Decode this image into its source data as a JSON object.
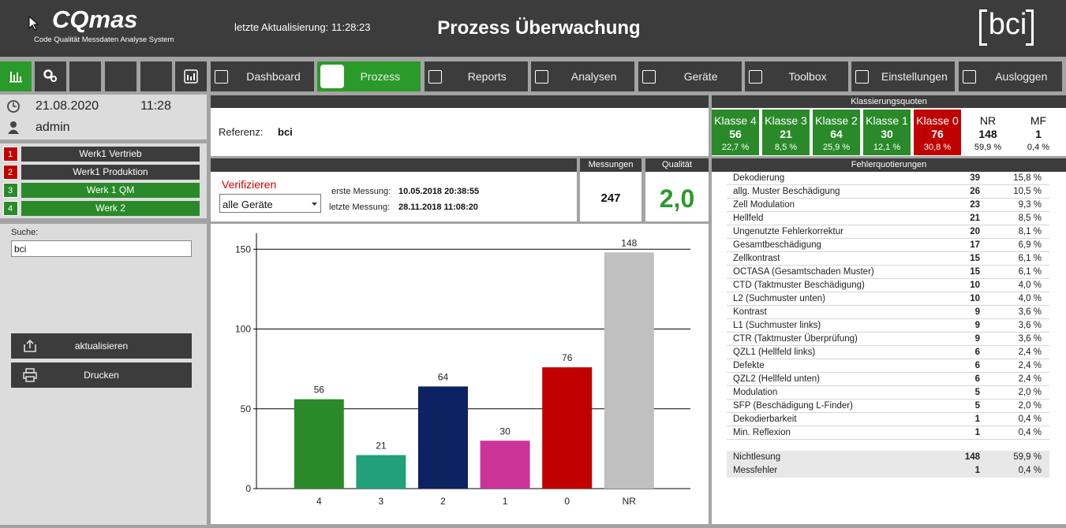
{
  "header": {
    "logo": "CQmas",
    "logo_subtitle": "Code Qualität Messdaten Analyse System",
    "last_update": "letzte Aktualisierung: 11:28:23",
    "title": "Prozess Überwachung",
    "brand": "bci"
  },
  "nav": {
    "tabs": [
      "Dashboard",
      "Prozess",
      "Reports",
      "Analysen",
      "Geräte",
      "Toolbox",
      "Einstellungen",
      "Ausloggen"
    ],
    "active_tab": 1
  },
  "session": {
    "date": "21.08.2020",
    "time": "11:28",
    "user": "admin"
  },
  "plants": [
    {
      "number": 1,
      "name": "Werk1 Vertrieb",
      "color": "#c00000",
      "label_color": "#3c3c3c"
    },
    {
      "number": 2,
      "name": "Werk1 Produktion",
      "color": "#c00000",
      "label_color": "#3c3c3c"
    },
    {
      "number": 3,
      "name": "Werk 1 QM",
      "color": "#2a8a2a",
      "label_color": "#2a8a2a"
    },
    {
      "number": 4,
      "name": "Werk 2",
      "color": "#2a8a2a",
      "label_color": "#2a8a2a"
    }
  ],
  "search": {
    "label": "Suche:",
    "value": "bci"
  },
  "buttons": [
    "aktualisieren",
    "Drucken"
  ],
  "reference": {
    "label": "Referenz:",
    "value": "bci"
  },
  "measurement": {
    "verify": "Verifizieren",
    "device": "alle Geräte",
    "first_label": "erste Messung:",
    "first": "10.05.2018 20:38:55",
    "last_label": "letzte Messung:",
    "last": "28.11.2018 11:08:20",
    "count_title": "Messungen",
    "count": 247,
    "quality_title": "Qualität",
    "quality": "2,0"
  },
  "chart_data": {
    "type": "bar",
    "categories": [
      "4",
      "3",
      "2",
      "1",
      "0",
      "NR"
    ],
    "values": [
      56,
      21,
      64,
      30,
      76,
      148
    ],
    "colors": [
      "#2a8a2a",
      "#22a07a",
      "#0d2260",
      "#cc3399",
      "#c00000",
      "#c0c0c0"
    ],
    "ylim": [
      0,
      160
    ],
    "yticks": [
      0,
      50,
      100,
      150
    ],
    "grid": true
  },
  "classification": {
    "title": "Klassierungsquoten",
    "classes": [
      {
        "name": "Klasse 4",
        "count": 56,
        "share": "22,7 %",
        "color": "#2a8a2a"
      },
      {
        "name": "Klasse 3",
        "count": 21,
        "share": "8,5 %",
        "color": "#2a8a2a"
      },
      {
        "name": "Klasse 2",
        "count": 64,
        "share": "25,9 %",
        "color": "#2a8a2a"
      },
      {
        "name": "Klasse 1",
        "count": 30,
        "share": "12,1 %",
        "color": "#2a8a2a"
      },
      {
        "name": "Klasse 0",
        "count": 76,
        "share": "30,8 %",
        "color": "#c00000"
      },
      {
        "name": "NR",
        "count": 148,
        "share": "59,9 %",
        "color": "#ffffff"
      },
      {
        "name": "MF",
        "count": 1,
        "share": "0,4 %",
        "color": "#ffffff"
      }
    ]
  },
  "errors": {
    "title": "Fehlerquotierungen",
    "rows": [
      [
        "Dekodierung",
        39,
        "15,8 %"
      ],
      [
        "allg. Muster Beschädigung",
        26,
        "10,5 %"
      ],
      [
        "Zell Modulation",
        23,
        "9,3 %"
      ],
      [
        "Hellfeld",
        21,
        "8,5 %"
      ],
      [
        "Ungenutzte Fehlerkorrektur",
        20,
        "8,1 %"
      ],
      [
        "Gesamtbeschädigung",
        17,
        "6,9 %"
      ],
      [
        "Zellkontrast",
        15,
        "6,1 %"
      ],
      [
        "OCTASA (Gesamtschaden Muster)",
        15,
        "6,1 %"
      ],
      [
        "CTD (Taktmuster Beschädigung)",
        10,
        "4,0 %"
      ],
      [
        "L2 (Suchmuster unten)",
        10,
        "4,0 %"
      ],
      [
        "Kontrast",
        9,
        "3,6 %"
      ],
      [
        "L1 (Suchmuster links)",
        9,
        "3,6 %"
      ],
      [
        "CTR (Taktmuster Überprüfung)",
        9,
        "3,6 %"
      ],
      [
        "QZL1 (Hellfeld links)",
        6,
        "2,4 %"
      ],
      [
        "Defekte",
        6,
        "2,4 %"
      ],
      [
        "QZL2 (Hellfeld unten)",
        6,
        "2,4 %"
      ],
      [
        "Modulation",
        5,
        "2,0 %"
      ],
      [
        "SFP (Beschädigung L-Finder)",
        5,
        "2,0 %"
      ],
      [
        "Dekodierbarkeit",
        1,
        "0,4 %"
      ],
      [
        "Min. Reflexion",
        1,
        "0,4 %"
      ]
    ],
    "summary": [
      [
        "Nichtlesung",
        148,
        "59,9 %"
      ],
      [
        "Messfehler",
        1,
        "0,4 %"
      ]
    ]
  }
}
